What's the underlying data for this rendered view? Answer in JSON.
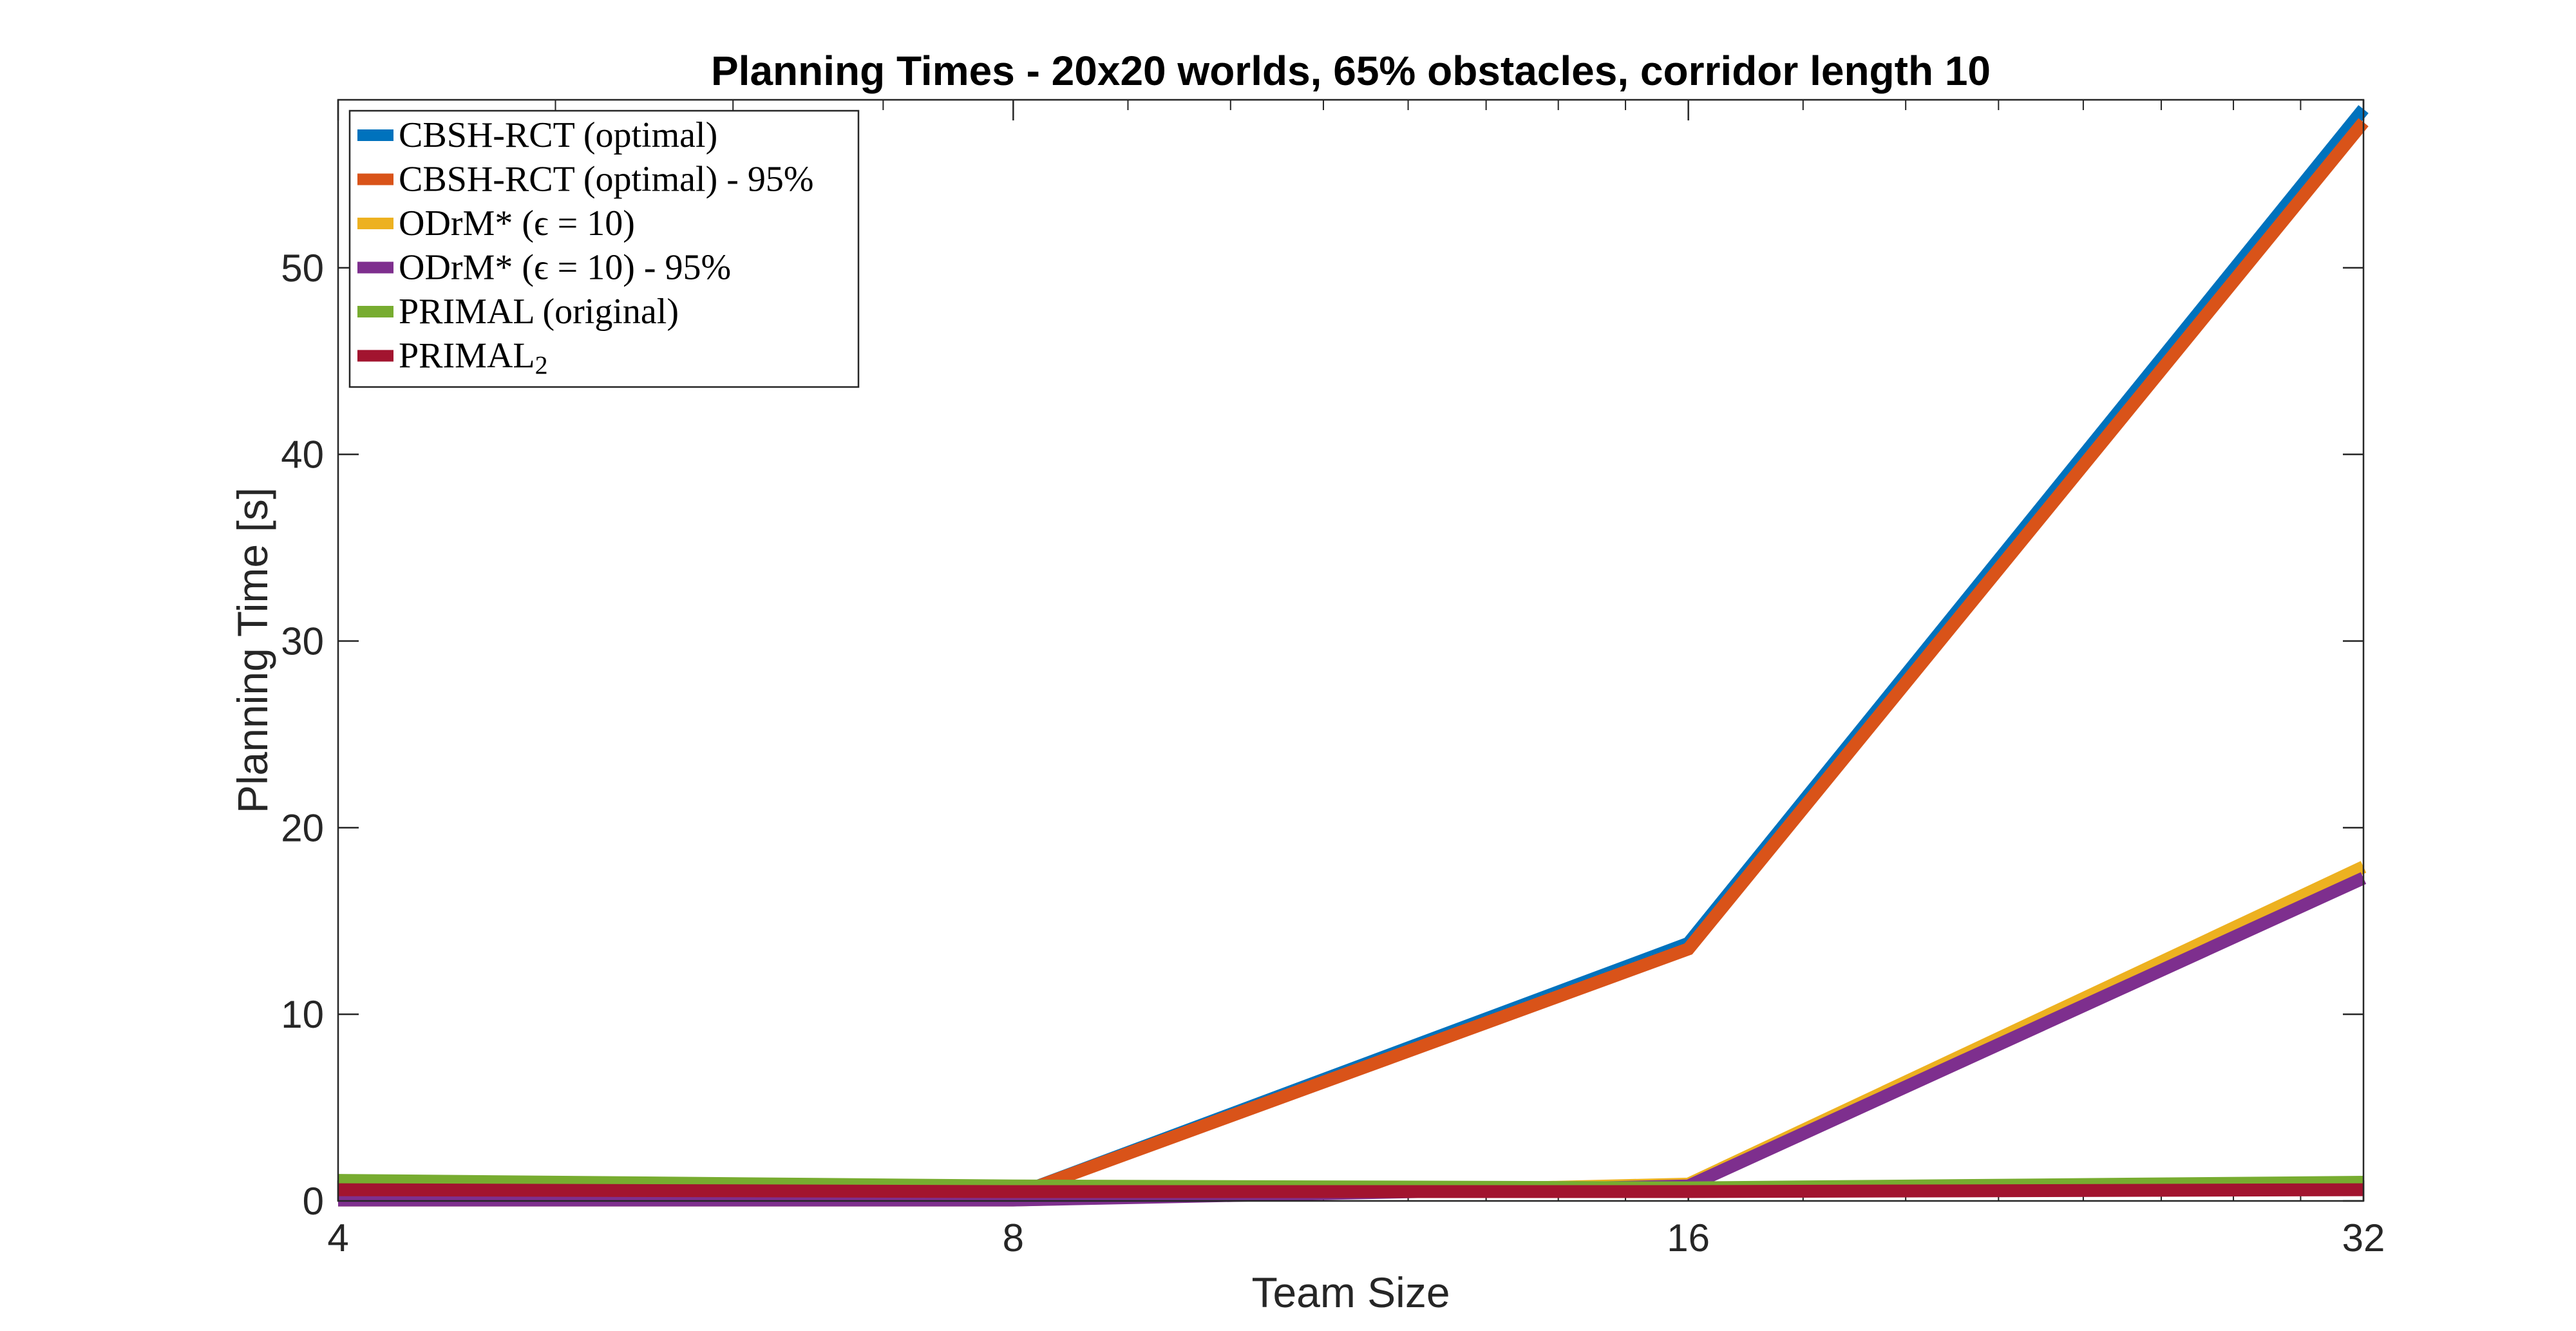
{
  "chart_data": {
    "type": "line",
    "title": "Planning Times - 20x20 worlds, 65% obstacles, corridor length 10",
    "xlabel": "Team Size",
    "ylabel": "Planning Time [s]",
    "x": [
      4,
      8,
      16,
      32
    ],
    "x_scale": "log2",
    "xticks": [
      "4",
      "8",
      "16",
      "32"
    ],
    "ylim": [
      0,
      59
    ],
    "yticks": [
      0,
      10,
      20,
      30,
      40,
      50
    ],
    "grid": false,
    "legend_position": "top-left",
    "series": [
      {
        "name": "CBSH-RCT (optimal)",
        "color": "#0072BD",
        "values": [
          0.3,
          0.3,
          13.8,
          58.5
        ]
      },
      {
        "name": "CBSH-RCT (optimal) - 95%",
        "color": "#D95319",
        "values": [
          0.3,
          0.3,
          13.5,
          57.8
        ]
      },
      {
        "name": "ODrM* (ϵ = 10)",
        "color": "#EDB120",
        "values": [
          0.05,
          0.05,
          0.9,
          17.9
        ]
      },
      {
        "name": "ODrM* (ϵ = 10) - 95%",
        "color": "#7E2F8E",
        "values": [
          0.05,
          0.05,
          0.8,
          17.3
        ]
      },
      {
        "name": "PRIMAL (original)",
        "color": "#77AC30",
        "values": [
          1.1,
          0.8,
          0.7,
          1.0
        ]
      },
      {
        "name": "PRIMAL",
        "name_subscript": "2",
        "color": "#A2142F",
        "values": [
          0.6,
          0.5,
          0.5,
          0.6
        ]
      }
    ]
  }
}
